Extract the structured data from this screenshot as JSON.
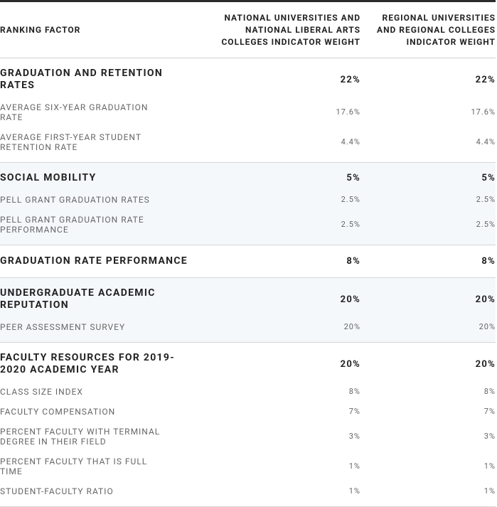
{
  "header": {
    "factor": "RANKING FACTOR",
    "national": "NATIONAL UNIVERSITIES AND NATIONAL LIBERAL ARTS COLLEGES INDICATOR WEIGHT",
    "regional": "REGIONAL UNIVERSITIES AND REGIONAL COLLEGES INDICATOR WEIGHT"
  },
  "groups": [
    {
      "name": "GRADUATION AND RETENTION RATES",
      "national": "22%",
      "regional": "22%",
      "items": [
        {
          "name": "AVERAGE SIX-YEAR GRADUATION RATE",
          "national": "17.6%",
          "regional": "17.6%"
        },
        {
          "name": "AVERAGE FIRST-YEAR STUDENT RETENTION RATE",
          "national": "4.4%",
          "regional": "4.4%"
        }
      ]
    },
    {
      "name": "SOCIAL MOBILITY",
      "national": "5%",
      "regional": "5%",
      "items": [
        {
          "name": "PELL GRANT GRADUATION RATES",
          "national": "2.5%",
          "regional": "2.5%"
        },
        {
          "name": "PELL GRANT GRADUATION RATE PERFORMANCE",
          "national": "2.5%",
          "regional": "2.5%"
        }
      ]
    },
    {
      "name": "GRADUATION RATE PERFORMANCE",
      "national": "8%",
      "regional": "8%",
      "items": []
    },
    {
      "name": "UNDERGRADUATE ACADEMIC REPUTATION",
      "national": "20%",
      "regional": "20%",
      "items": [
        {
          "name": "PEER ASSESSMENT SURVEY",
          "national": "20%",
          "regional": "20%"
        }
      ]
    },
    {
      "name": "FACULTY RESOURCES FOR 2019-2020 ACADEMIC YEAR",
      "national": "20%",
      "regional": "20%",
      "items": [
        {
          "name": "CLASS SIZE INDEX",
          "national": "8%",
          "regional": "8%"
        },
        {
          "name": "FACULTY COMPENSATION",
          "national": "7%",
          "regional": "7%"
        },
        {
          "name": "PERCENT FACULTY WITH TERMINAL DEGREE IN THEIR FIELD",
          "national": "3%",
          "regional": "3%"
        },
        {
          "name": "PERCENT FACULTY THAT IS FULL TIME",
          "national": "1%",
          "regional": "1%"
        },
        {
          "name": "STUDENT-FACULTY RATIO",
          "national": "1%",
          "regional": "1%"
        }
      ]
    }
  ]
}
